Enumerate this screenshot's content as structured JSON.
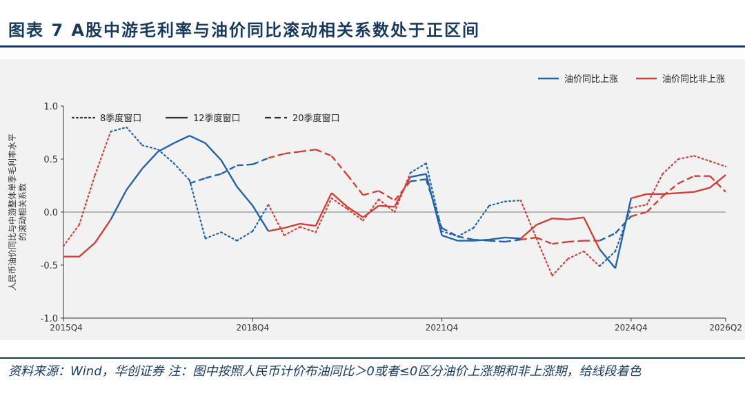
{
  "title": "图表 7 A股中游毛利率与油价同比滚动相关系数处于正区间",
  "source": "资料来源：Wind，华创证券 注：图中按照人民币计价布油同比＞0或者≤0区分油价上涨期和非上涨期，给线段着色",
  "chart_data": {
    "type": "line",
    "title": "",
    "xlabel": "",
    "ylabel": "人民币油价同比与中游整体单季毛利率水平的滚动相关系数",
    "ylim": [
      -1.0,
      1.0
    ],
    "yticks": [
      "1.0",
      "0.5",
      "0.0",
      "-0.5",
      "-1.0"
    ],
    "xticks": [
      "2015Q4",
      "2018Q4",
      "2021Q4",
      "2024Q4",
      "2026Q2"
    ],
    "zero_line": true,
    "grid": false,
    "colors": {
      "rising": "#2262a8",
      "non_rising": "#cf4038",
      "axis": "#333333"
    },
    "legend_color": [
      {
        "label": "油价同比上涨",
        "color": "#2262a8"
      },
      {
        "label": "油价同比非上涨",
        "color": "#cf4038"
      }
    ],
    "legend_style": [
      {
        "label": "8季度窗口",
        "dash": "dotted"
      },
      {
        "label": "12季度窗口",
        "dash": "solid"
      },
      {
        "label": "20季度窗口",
        "dash": "dashed"
      }
    ],
    "x": [
      "2015Q4",
      "2016Q1",
      "2016Q2",
      "2016Q3",
      "2016Q4",
      "2017Q1",
      "2017Q2",
      "2017Q3",
      "2017Q4",
      "2018Q1",
      "2018Q2",
      "2018Q3",
      "2018Q4",
      "2019Q1",
      "2019Q2",
      "2019Q3",
      "2019Q4",
      "2020Q1",
      "2020Q2",
      "2020Q3",
      "2020Q4",
      "2021Q1",
      "2021Q2",
      "2021Q3",
      "2021Q4",
      "2022Q1",
      "2022Q2",
      "2022Q3",
      "2022Q4",
      "2023Q1",
      "2023Q2",
      "2023Q3",
      "2023Q4",
      "2024Q1",
      "2024Q2",
      "2024Q3",
      "2024Q4",
      "2025Q1",
      "2025Q2",
      "2025Q3",
      "2025Q4",
      "2026Q1",
      "2026Q2"
    ],
    "regime": [
      "N",
      "N",
      "N",
      "N",
      "R",
      "R",
      "R",
      "R",
      "R",
      "R",
      "R",
      "R",
      "R",
      "R",
      "N",
      "N",
      "N",
      "N",
      "N",
      "N",
      "N",
      "N",
      "N",
      "R",
      "R",
      "R",
      "R",
      "R",
      "R",
      "R",
      "N",
      "N",
      "N",
      "N",
      "N",
      "R",
      "R",
      "N",
      "N",
      "N",
      "N",
      "N",
      "N"
    ],
    "series": [
      {
        "name": "8季度窗口",
        "dash": "dotted",
        "values": [
          -0.32,
          -0.12,
          0.35,
          0.76,
          0.8,
          0.63,
          0.59,
          0.46,
          0.3,
          -0.25,
          -0.19,
          -0.27,
          -0.18,
          0.07,
          -0.22,
          -0.14,
          -0.19,
          0.13,
          0.03,
          -0.08,
          0.12,
          0.0,
          0.37,
          0.46,
          -0.18,
          -0.23,
          -0.15,
          0.06,
          0.1,
          0.11,
          -0.25,
          -0.6,
          -0.44,
          -0.37,
          -0.51,
          -0.37,
          0.04,
          0.07,
          0.36,
          0.5,
          0.53,
          0.48,
          0.43
        ]
      },
      {
        "name": "12季度窗口",
        "dash": "solid",
        "values": [
          -0.42,
          -0.42,
          -0.29,
          -0.07,
          0.21,
          0.41,
          0.57,
          0.65,
          0.72,
          0.65,
          0.49,
          0.24,
          0.06,
          -0.18,
          -0.15,
          -0.11,
          -0.13,
          0.18,
          0.05,
          -0.05,
          0.06,
          0.05,
          0.33,
          0.36,
          -0.22,
          -0.27,
          -0.27,
          -0.26,
          -0.24,
          -0.25,
          -0.12,
          -0.06,
          -0.07,
          -0.05,
          -0.35,
          -0.53,
          0.13,
          0.17,
          0.17,
          0.18,
          0.19,
          0.23,
          0.35
        ]
      },
      {
        "name": "20季度窗口",
        "dash": "dashed",
        "values": [
          null,
          null,
          null,
          null,
          null,
          null,
          null,
          null,
          0.27,
          0.32,
          0.36,
          0.44,
          0.45,
          0.51,
          0.55,
          0.57,
          0.59,
          0.53,
          0.35,
          0.16,
          0.2,
          0.11,
          0.29,
          0.31,
          -0.15,
          -0.23,
          -0.26,
          -0.27,
          -0.28,
          -0.26,
          -0.24,
          -0.3,
          -0.28,
          -0.27,
          -0.27,
          -0.2,
          -0.04,
          0.0,
          0.15,
          0.27,
          0.34,
          0.34,
          0.19
        ]
      }
    ]
  }
}
